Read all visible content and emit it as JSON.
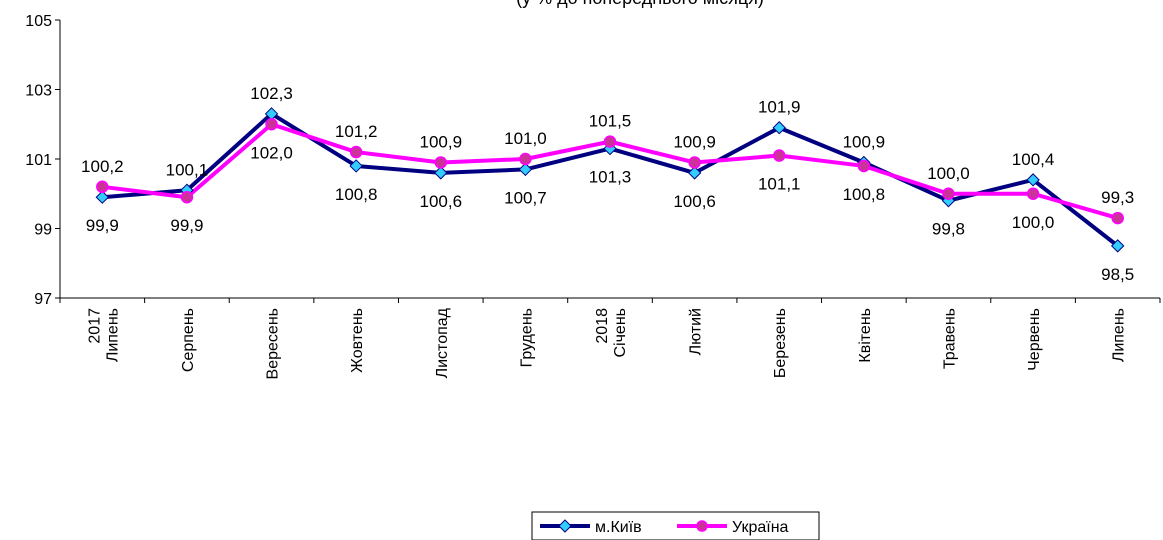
{
  "chart_data": {
    "type": "line",
    "title": "(у % до попереднього місяця)",
    "categories": [
      [
        "2017",
        "Липень"
      ],
      [
        "Серпень"
      ],
      [
        "Вересень"
      ],
      [
        "Жовтень"
      ],
      [
        "Листопад"
      ],
      [
        "Грудень"
      ],
      [
        "2018",
        "Січень"
      ],
      [
        "Лютий"
      ],
      [
        "Березень"
      ],
      [
        "Квітень"
      ],
      [
        "Травень"
      ],
      [
        "Червень"
      ],
      [
        "Липень"
      ]
    ],
    "ylim": [
      97,
      105
    ],
    "yticks": [
      "97",
      "99",
      "101",
      "103",
      "105"
    ],
    "legend_position": "bottom",
    "series": [
      {
        "name": "м.Київ",
        "color": "#000080",
        "marker": "diamond",
        "marker_color": "#33CCFF",
        "values": [
          99.9,
          100.1,
          102.3,
          100.8,
          100.6,
          100.7,
          101.3,
          100.6,
          101.9,
          100.9,
          99.8,
          100.4,
          98.5
        ],
        "labels": [
          "99,9",
          "100,1",
          "102,3",
          "100,8",
          "100,6",
          "100,7",
          "101,3",
          "100,6",
          "101,9",
          "100,9",
          "99,8",
          "100,4",
          "98,5"
        ]
      },
      {
        "name": "Україна",
        "color": "#FF00FF",
        "marker": "circle",
        "marker_color": "#CC3399",
        "values": [
          100.2,
          99.9,
          102.0,
          101.2,
          100.9,
          101.0,
          101.5,
          100.9,
          101.1,
          100.8,
          100.0,
          100.0,
          99.3
        ],
        "labels": [
          "100,2",
          "99,9",
          "102,0",
          "101,2",
          "100,9",
          "101,0",
          "101,5",
          "100,9",
          "101,1",
          "100,8",
          "100,0",
          "100,0",
          "99,3"
        ]
      }
    ]
  }
}
